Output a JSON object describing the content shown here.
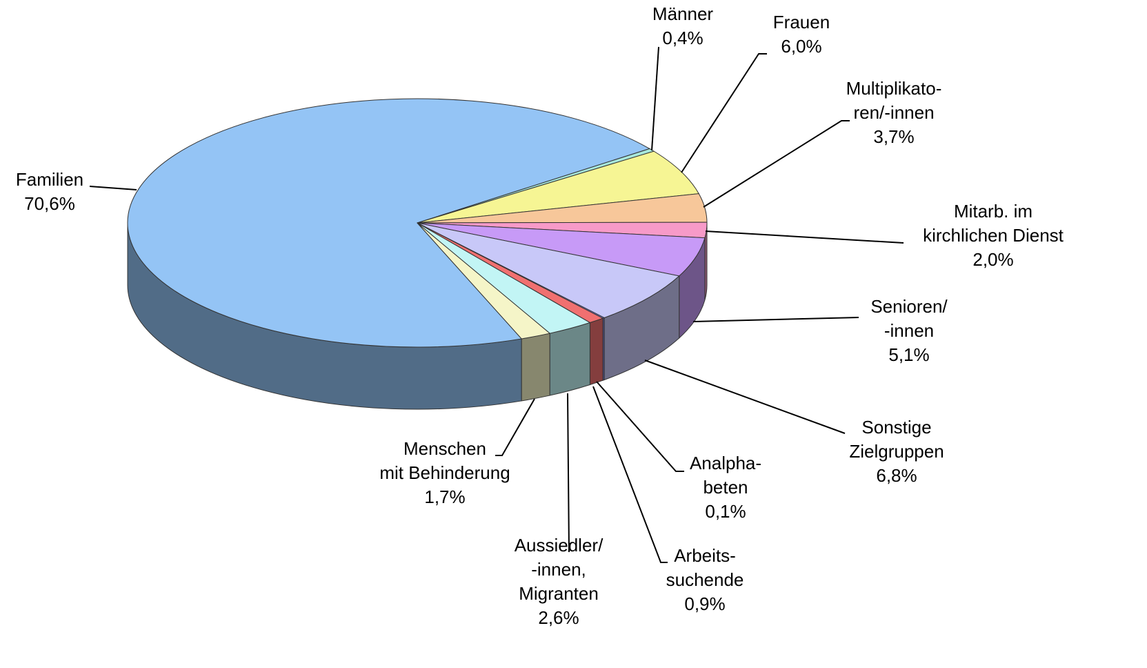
{
  "chart_data": {
    "type": "pie3d",
    "categories": [
      [
        "Familien"
      ],
      [
        "Männer"
      ],
      [
        "Frauen"
      ],
      [
        "Multiplikato-",
        "ren/-innen"
      ],
      [
        "Mitarb. im",
        "kirchlichen Dienst"
      ],
      [
        "Senioren/",
        "-innen"
      ],
      [
        "Sonstige",
        "Zielgruppen"
      ],
      [
        "Analpha-",
        "beten"
      ],
      [
        "Arbeits-",
        "suchende"
      ],
      [
        "Aussiedler/",
        "-innen,",
        "Migranten"
      ],
      [
        "Menschen",
        "mit Behinderung"
      ]
    ],
    "values": [
      70.6,
      0.4,
      6.0,
      3.7,
      2.0,
      5.1,
      6.8,
      0.1,
      0.9,
      2.6,
      1.7
    ],
    "value_labels": [
      "70,6%",
      "0,4%",
      "6,0%",
      "3,7%",
      "2,0%",
      "5,1%",
      "6,8%",
      "0,1%",
      "0,9%",
      "2,6%",
      "1,7%"
    ],
    "colors": [
      "#94c4f5",
      "#a8e8dc",
      "#f6f594",
      "#f7c79a",
      "#f79ac8",
      "#c79af7",
      "#c8c8f8",
      "#8c8cff",
      "#f07070",
      "#c2f5f5",
      "#f5f5c8"
    ]
  }
}
